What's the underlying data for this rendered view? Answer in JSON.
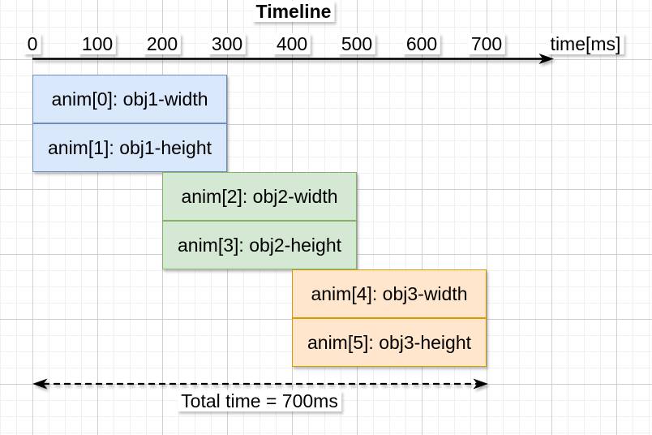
{
  "diagram": {
    "title": "Timeline",
    "axis": {
      "unit_label": "time[ms]",
      "ticks": [
        0,
        100,
        200,
        300,
        400,
        500,
        600,
        700
      ]
    },
    "total_label": "Total time = 700ms"
  },
  "colors": {
    "blue_fill": "#dae8fc",
    "blue_stroke": "#6c8ebf",
    "green_fill": "#d5e8d4",
    "green_stroke": "#82b366",
    "orange_fill": "#ffe6cc",
    "orange_stroke": "#d79b00",
    "axis_stroke": "#000000",
    "grid_minor": "#f0f0f0",
    "grid_major": "#cfcfcf"
  },
  "chart_data": {
    "type": "gantt",
    "title": "Timeline",
    "xlabel": "time[ms]",
    "xlim": [
      0,
      700
    ],
    "xticks": [
      0,
      100,
      200,
      300,
      400,
      500,
      600,
      700
    ],
    "grid": true,
    "bars": [
      {
        "label": "anim[0]: obj1-width",
        "start_ms": 0,
        "end_ms": 300,
        "fill": "#dae8fc",
        "stroke": "#6c8ebf"
      },
      {
        "label": "anim[1]: obj1-height",
        "start_ms": 0,
        "end_ms": 300,
        "fill": "#dae8fc",
        "stroke": "#6c8ebf"
      },
      {
        "label": "anim[2]: obj2-width",
        "start_ms": 200,
        "end_ms": 500,
        "fill": "#d5e8d4",
        "stroke": "#82b366"
      },
      {
        "label": "anim[3]: obj2-height",
        "start_ms": 200,
        "end_ms": 500,
        "fill": "#d5e8d4",
        "stroke": "#82b366"
      },
      {
        "label": "anim[4]: obj3-width",
        "start_ms": 400,
        "end_ms": 700,
        "fill": "#ffe6cc",
        "stroke": "#d79b00"
      },
      {
        "label": "anim[5]: obj3-height",
        "start_ms": 400,
        "end_ms": 700,
        "fill": "#ffe6cc",
        "stroke": "#d79b00"
      }
    ],
    "total": {
      "label": "Total time = 700ms",
      "start_ms": 0,
      "end_ms": 700
    }
  }
}
